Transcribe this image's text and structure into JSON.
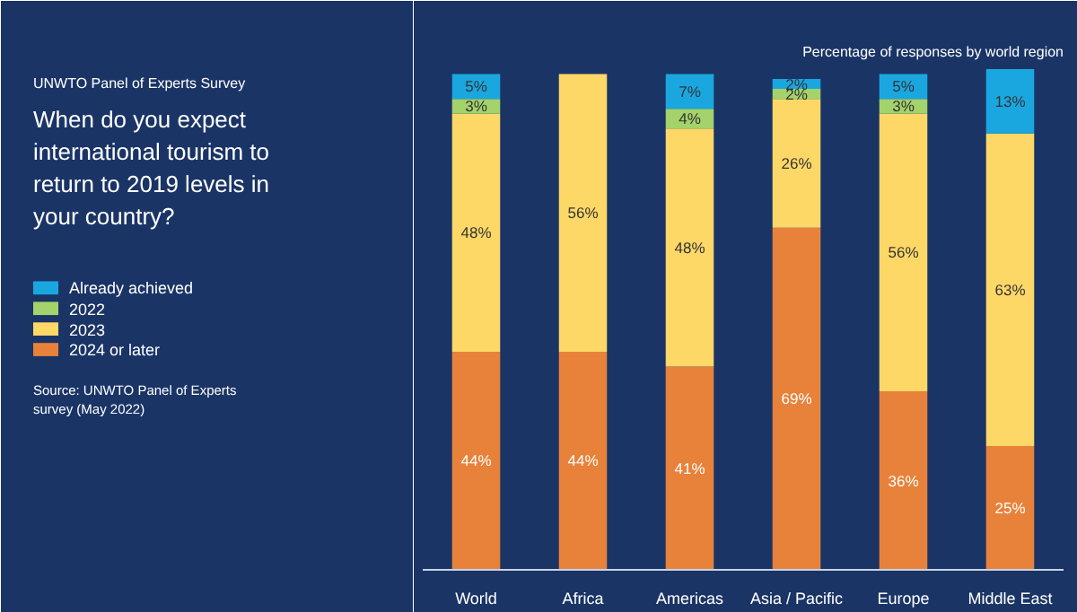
{
  "chart_data": {
    "type": "bar",
    "stacked": true,
    "title": "When do you expect international tourism to return to 2019 levels in your country?",
    "subtitle": "Percentage of responses by world region",
    "annotations": [
      "UNWTO Panel of Experts Survey",
      "Source: UNWTO Panel of Experts survey (May 2022)"
    ],
    "legend": "left",
    "categories": [
      "World",
      "Africa",
      "Americas",
      "Asia / Pacific",
      "Europe",
      "Middle East"
    ],
    "series": [
      {
        "name": "2024 or later",
        "color": "#e8823a",
        "values": [
          44,
          44,
          41,
          69,
          36,
          25
        ],
        "value_labels": [
          "44%",
          "44%",
          "41%",
          "69%",
          "36%",
          "25%"
        ]
      },
      {
        "name": "2023",
        "color": "#fdd867",
        "values": [
          48,
          56,
          48,
          26,
          56,
          63
        ],
        "value_labels": [
          "48%",
          "56%",
          "48%",
          "26%",
          "56%",
          "63%"
        ]
      },
      {
        "name": "2022",
        "color": "#a4d26b",
        "values": [
          3,
          0,
          4,
          2,
          3,
          0
        ],
        "value_labels": [
          "3%",
          null,
          "4%",
          "2%",
          "3%",
          null
        ]
      },
      {
        "name": "Already achieved",
        "color": "#1aa7e0",
        "values": [
          5,
          0,
          7,
          2,
          5,
          13
        ],
        "value_labels": [
          "5%",
          null,
          "7%",
          "2%",
          "5%",
          "13%"
        ]
      }
    ]
  }
}
